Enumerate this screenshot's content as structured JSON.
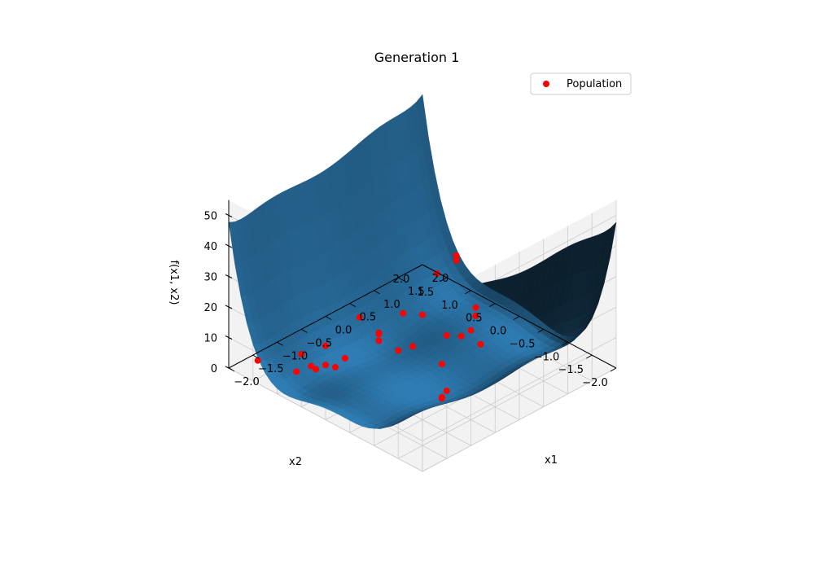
{
  "chart_data": {
    "type": "scatter",
    "title": "Generation 1",
    "xlabel": "x1",
    "ylabel": "x2",
    "zlabel": "f(x1, x2)",
    "xlim": [
      -2,
      2
    ],
    "ylim": [
      -2,
      2
    ],
    "zlim": [
      0,
      55
    ],
    "x_ticks": [
      "−2.0",
      "−1.5",
      "−1.0",
      "−0.5",
      "0.0",
      "0.5",
      "1.0",
      "1.5",
      "2.0"
    ],
    "y_ticks": [
      "−2.0",
      "−1.5",
      "−1.0",
      "−0.5",
      "0.0",
      "0.5",
      "1.0",
      "1.5",
      "2.0"
    ],
    "z_ticks": [
      "0",
      "10",
      "20",
      "30",
      "40",
      "50"
    ],
    "grid": true,
    "legend": {
      "placement": "top-right",
      "entries": [
        {
          "name": "Population",
          "color": "#ff0000"
        }
      ]
    },
    "surface": {
      "color_light": "#2e7cb3",
      "color_dark": "#1f3d5c",
      "function": "six-hump camel"
    },
    "series": [
      {
        "name": "Population",
        "color": "#ff0000",
        "points": [
          {
            "x": -1.2,
            "y": -1.6,
            "z": 25
          },
          {
            "x": -0.9,
            "y": -1.4,
            "z": 12
          },
          {
            "x": -0.8,
            "y": -1.2,
            "z": 7
          },
          {
            "x": -0.6,
            "y": -1.0,
            "z": 4
          },
          {
            "x": -0.3,
            "y": -0.8,
            "z": 20
          },
          {
            "x": 0.4,
            "y": -0.3,
            "z": 36
          },
          {
            "x": 0.6,
            "y": -0.1,
            "z": 31
          },
          {
            "x": 0.5,
            "y": 0.2,
            "z": 25
          },
          {
            "x": -0.5,
            "y": 0.4,
            "z": 12
          },
          {
            "x": -0.3,
            "y": 0.6,
            "z": 9
          },
          {
            "x": -0.1,
            "y": 0.8,
            "z": 3
          },
          {
            "x": 0.2,
            "y": 0.4,
            "z": 2
          },
          {
            "x": -0.7,
            "y": 0.9,
            "z": 1.5
          },
          {
            "x": 0.9,
            "y": 0.1,
            "z": 2
          },
          {
            "x": 1.0,
            "y": -0.2,
            "z": 1
          },
          {
            "x": 1.2,
            "y": 0.2,
            "z": 0.5
          },
          {
            "x": 1.5,
            "y": 0.4,
            "z": 1
          },
          {
            "x": 1.6,
            "y": 0.5,
            "z": 2
          },
          {
            "x": 1.0,
            "y": 1.0,
            "z": 0.5
          },
          {
            "x": 0.8,
            "y": 1.2,
            "z": 1
          },
          {
            "x": 0.3,
            "y": 1.6,
            "z": 0.5
          },
          {
            "x": -1.3,
            "y": 0.9,
            "z": 3
          },
          {
            "x": -1.2,
            "y": 1.1,
            "z": 1.5
          },
          {
            "x": -1.0,
            "y": 1.0,
            "z": 1
          },
          {
            "x": -0.6,
            "y": 1.4,
            "z": 0.5
          },
          {
            "x": -1.0,
            "y": 0.8,
            "z": 2
          },
          {
            "x": -1.4,
            "y": 1.2,
            "z": 0.5
          },
          {
            "x": -1.0,
            "y": 1.5,
            "z": 0.3
          },
          {
            "x": -1.6,
            "y": 1.8,
            "z": 0.8
          },
          {
            "x": 0.0,
            "y": 0.5,
            "z": 1.5
          }
        ]
      }
    ]
  }
}
